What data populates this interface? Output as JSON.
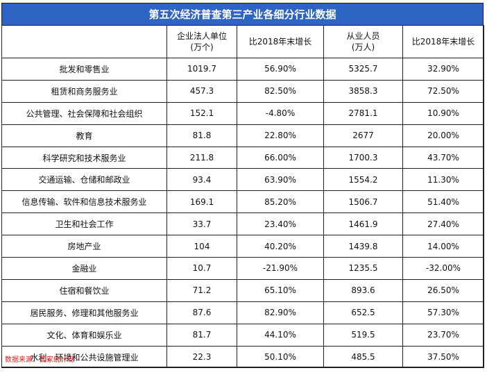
{
  "title": "第五次经济普查第三产业各细分行业数据",
  "headers": [
    "",
    "企业法人单位",
    "比2018年末增长",
    "从业人员",
    "比2018年末增长"
  ],
  "header_sub": [
    "",
    "(万个)",
    "",
    "(万人)",
    ""
  ],
  "rows": [
    [
      "批发和零售业",
      "1019.7",
      "56.90%",
      "5325.7",
      "32.90%"
    ],
    [
      "租赁和商务服务业",
      "457.3",
      "82.50%",
      "3858.3",
      "72.50%"
    ],
    [
      "公共管理、社会保障和社会组织",
      "152.1",
      "-4.80%",
      "2781.1",
      "10.90%"
    ],
    [
      "教育",
      "81.8",
      "22.80%",
      "2677",
      "20.00%"
    ],
    [
      "科学研究和技术服务业",
      "211.8",
      "66.00%",
      "1700.3",
      "43.70%"
    ],
    [
      "交通运输、仓储和邮政业",
      "93.4",
      "63.90%",
      "1554.2",
      "11.30%"
    ],
    [
      "信息传输、软件和信息技术服务业",
      "169.1",
      "85.20%",
      "1506.7",
      "51.40%"
    ],
    [
      "卫生和社会工作",
      "33.7",
      "23.40%",
      "1461.9",
      "27.40%"
    ],
    [
      "房地产业",
      "104",
      "40.20%",
      "1439.8",
      "14.00%"
    ],
    [
      "金融业",
      "10.7",
      "-21.90%",
      "1235.5",
      "-32.00%"
    ],
    [
      "住宿和餐饮业",
      "71.2",
      "65.10%",
      "893.6",
      "26.50%"
    ],
    [
      "居民服务、修理和其他服务业",
      "87.6",
      "82.90%",
      "652.5",
      "57.30%"
    ],
    [
      "文化、体育和娱乐业",
      "81.7",
      "44.10%",
      "519.5",
      "23.70%"
    ],
    [
      "水利、环境和公共设施管理业",
      "22.3",
      "50.10%",
      "485.5",
      "37.50%"
    ]
  ],
  "source": "数据来源：国家统计局",
  "colors": {
    "title_bg": "#2e64c4",
    "source_text": "#e02020"
  }
}
